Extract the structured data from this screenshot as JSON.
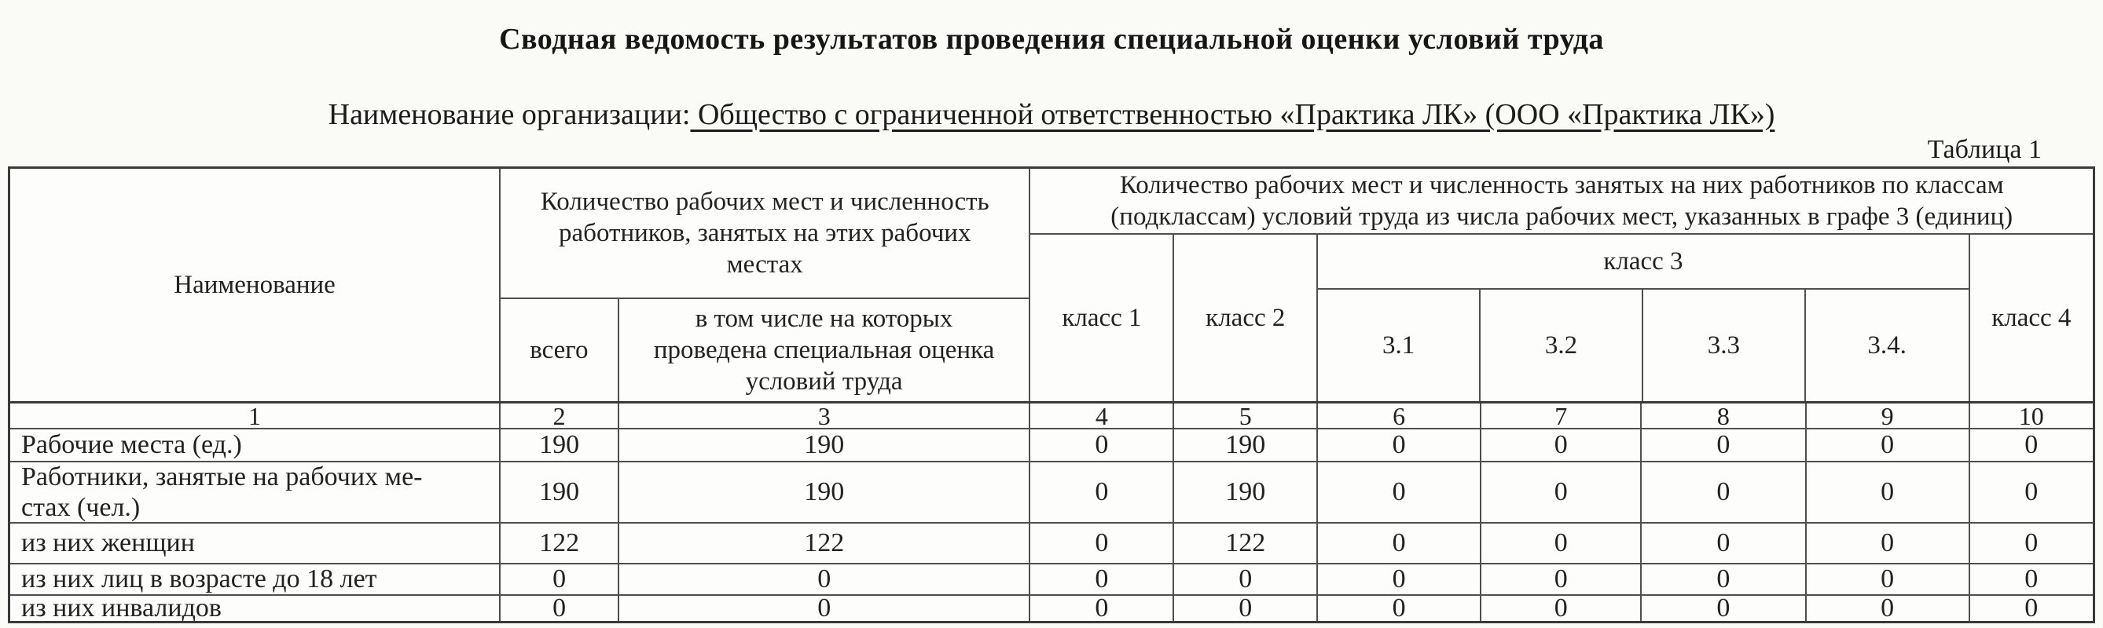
{
  "document": {
    "title": "Сводная ведомость результатов проведения специальной оценки условий труда",
    "org_label": "Наименование организации:",
    "org_name": " Общество с ограниченной ответственностью «Практика ЛК» (ООО «Практика ЛК»)",
    "table_caption": "Таблица 1"
  },
  "table": {
    "header": {
      "name_col": "Наименование",
      "left_group_title": "Количество рабочих мест и численность\nработников, занятых на этих рабочих\nместах",
      "right_group_title": "Количество рабочих мест и численность занятых на них работников по классам\n(подклассам) условий труда из числа рабочих мест, указанных в графе 3 (единиц)",
      "total_col": "всего",
      "assessed_col": "в том числе на которых\nпроведена специальная оценка\nусловий труда",
      "class1": "класс 1",
      "class2": "класс 2",
      "class3": "класс 3",
      "class4": "класс 4",
      "class3_sub": [
        "3.1",
        "3.2",
        "3.3",
        "3.4."
      ],
      "column_numbers": [
        "1",
        "2",
        "3",
        "4",
        "5",
        "6",
        "7",
        "8",
        "9",
        "10"
      ]
    },
    "rows": [
      {
        "label": "Рабочие места (ед.)",
        "values": [
          "190",
          "190",
          "0",
          "190",
          "0",
          "0",
          "0",
          "0",
          "0"
        ]
      },
      {
        "label": "Работники, занятые на рабочих ме-\nстах (чел.)",
        "values": [
          "190",
          "190",
          "0",
          "190",
          "0",
          "0",
          "0",
          "0",
          "0"
        ]
      },
      {
        "label": "из них женщин",
        "values": [
          "122",
          "122",
          "0",
          "122",
          "0",
          "0",
          "0",
          "0",
          "0"
        ]
      },
      {
        "label": "из них лиц в возрасте до 18 лет",
        "values": [
          "0",
          "0",
          "0",
          "0",
          "0",
          "0",
          "0",
          "0",
          "0"
        ]
      },
      {
        "label": "из них инвалидов",
        "values": [
          "0",
          "0",
          "0",
          "0",
          "0",
          "0",
          "0",
          "0",
          "0"
        ]
      }
    ]
  }
}
